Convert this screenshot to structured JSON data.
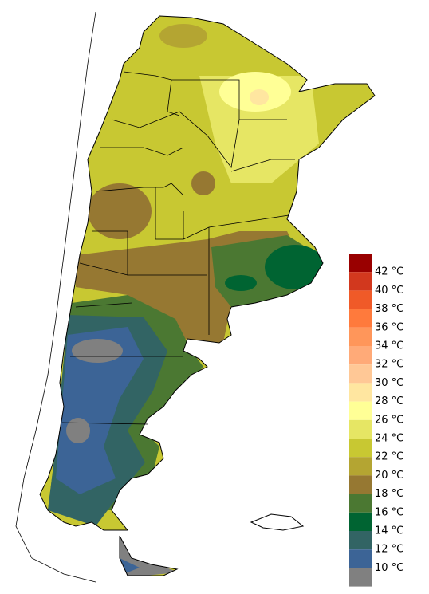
{
  "legend": {
    "colors": [
      "#990000",
      "#d2381e",
      "#f05a28",
      "#ff7a3c",
      "#ff965a",
      "#ffaa78",
      "#ffc896",
      "#ffe6a0",
      "#ffff96",
      "#e6e664",
      "#c8c832",
      "#b4a532",
      "#967832",
      "#4b7832",
      "#006432",
      "#326464",
      "#3c6496",
      "#808080"
    ],
    "labels": [
      "42 °C",
      "40 °C",
      "38 °C",
      "36 °C",
      "34 °C",
      "32 °C",
      "30 °C",
      "28 °C",
      "26 °C",
      "24 °C",
      "22 °C",
      "20 °C",
      "18 °C",
      "16 °C",
      "14 °C",
      "12 °C",
      "10 °C"
    ]
  }
}
